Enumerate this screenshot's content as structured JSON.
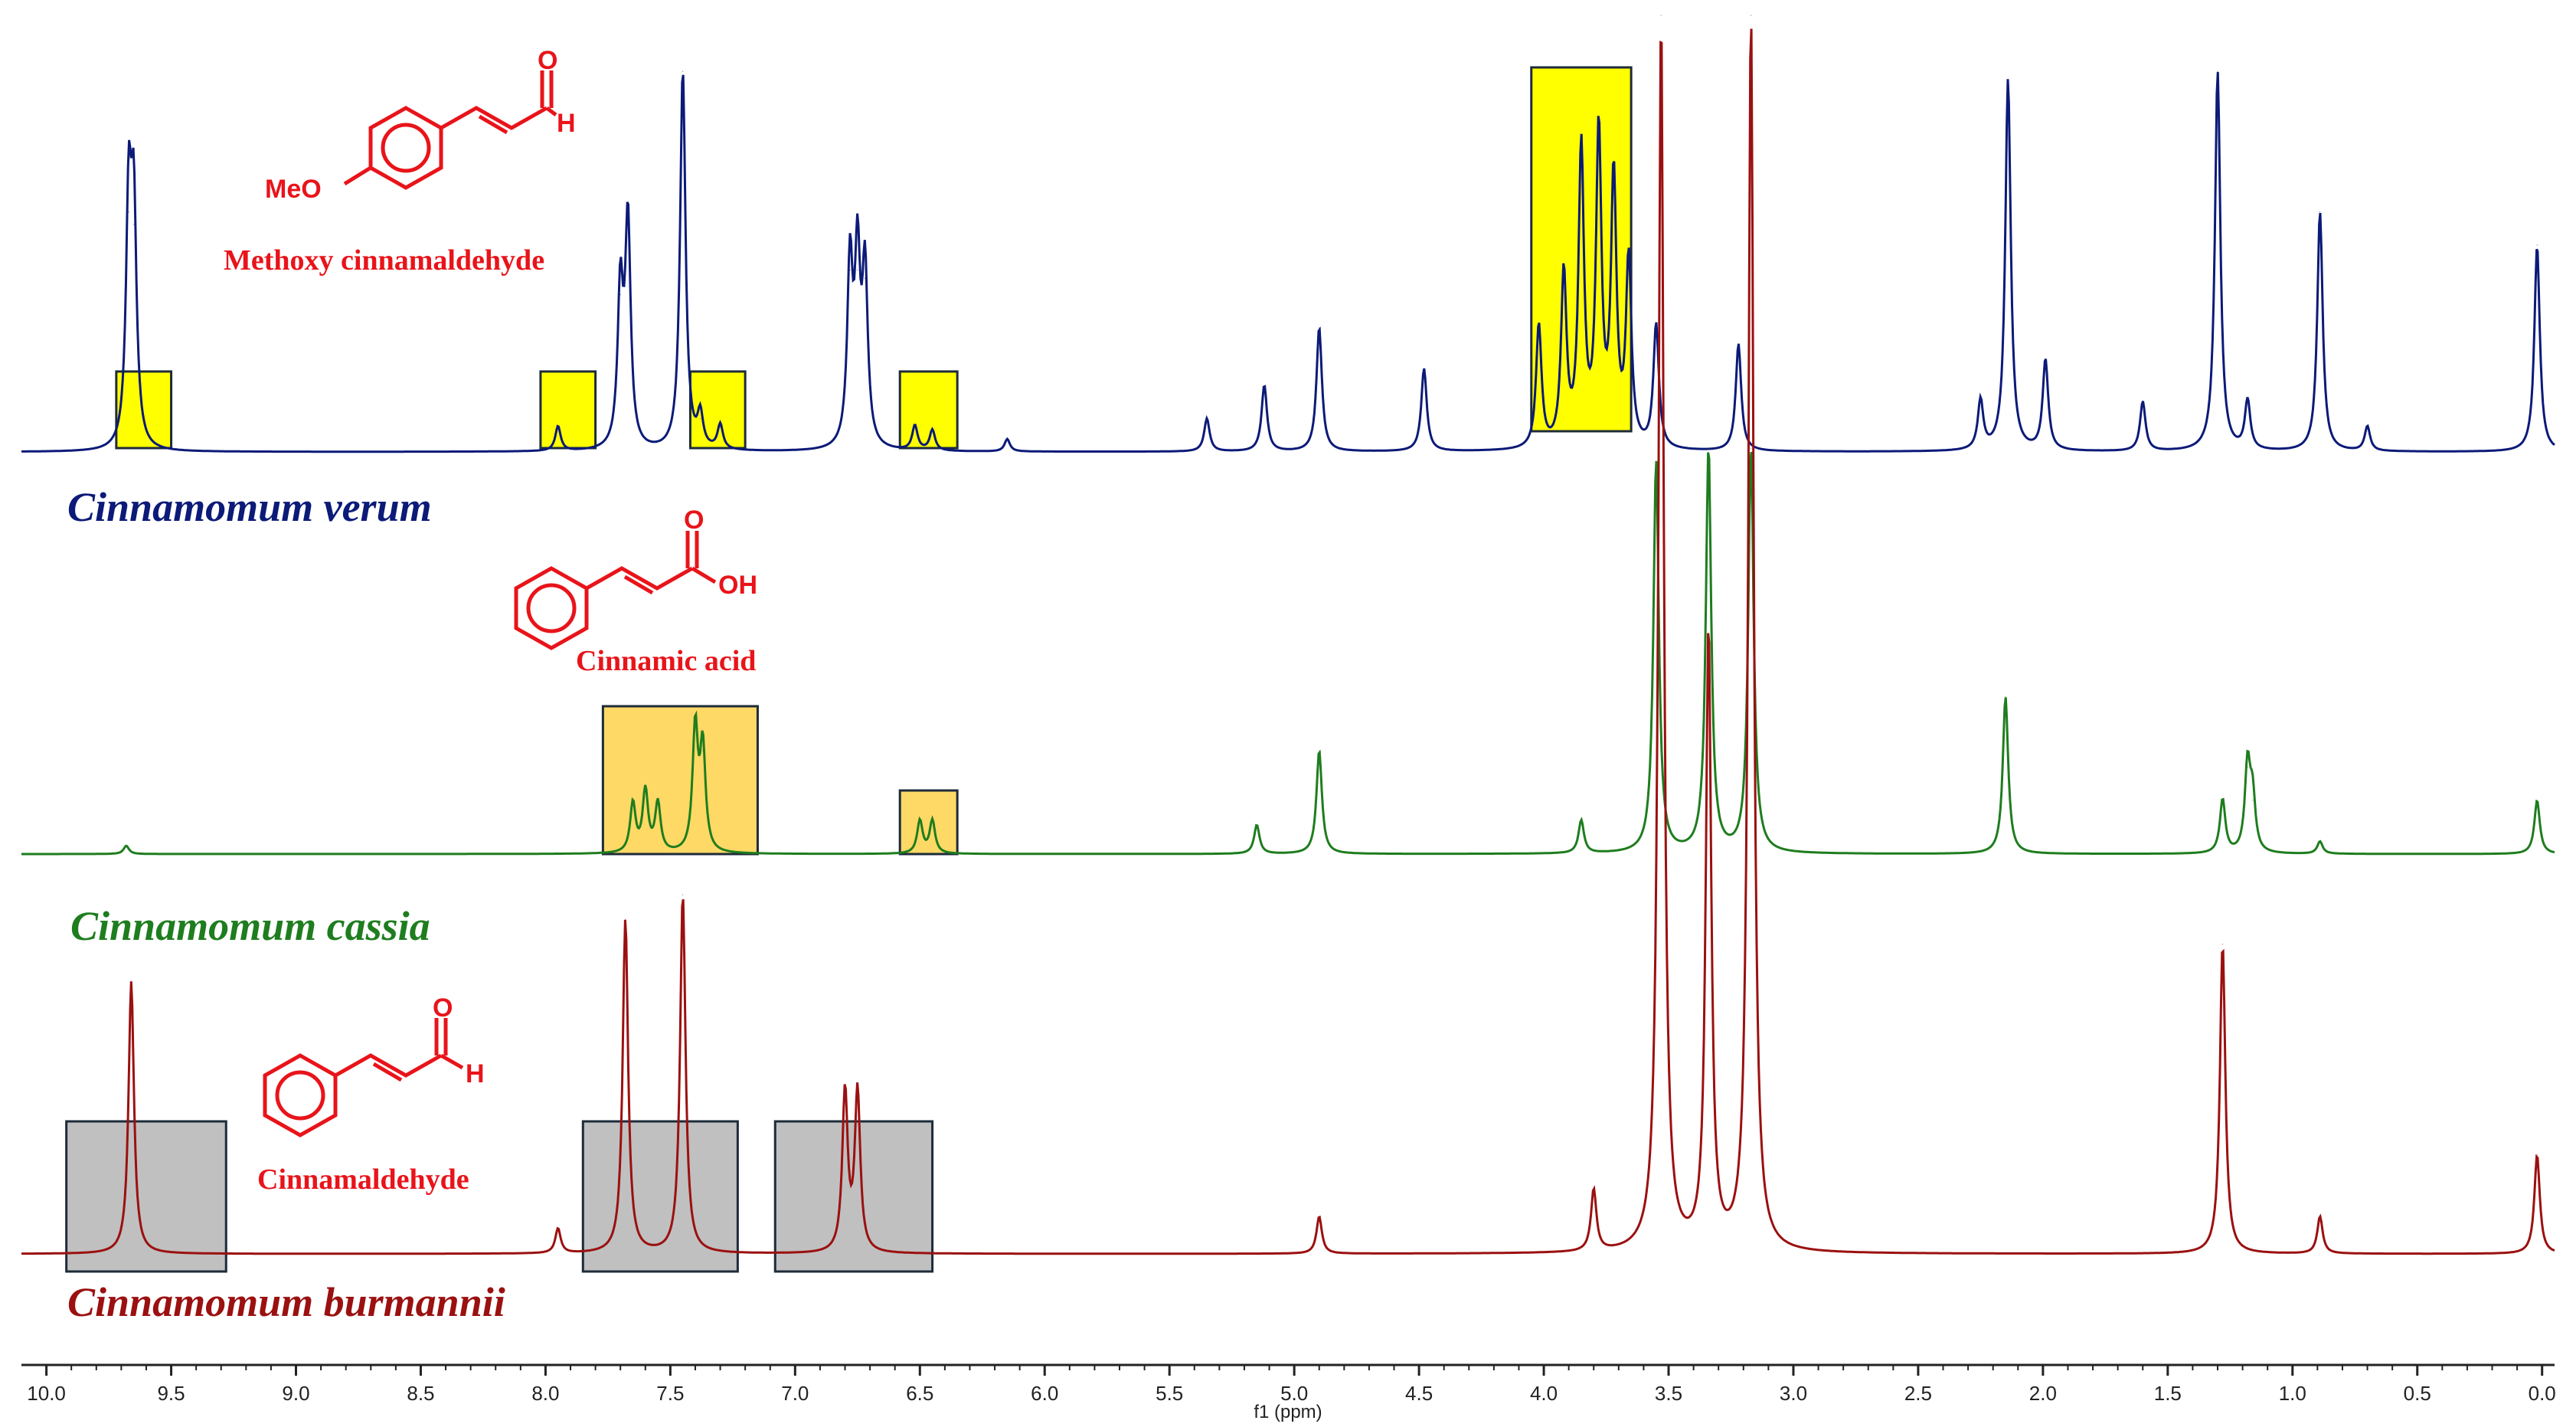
{
  "chart_data": {
    "type": "line",
    "subtype": "stacked 1H NMR spectra",
    "xlabel": "f1 (ppm)",
    "xlim": [
      10.1,
      -0.05
    ],
    "x_reversed": true,
    "x_ticks": [
      10.0,
      9.5,
      9.0,
      8.5,
      8.0,
      7.5,
      7.0,
      6.5,
      6.0,
      5.5,
      5.0,
      4.5,
      4.0,
      3.5,
      3.0,
      2.5,
      2.0,
      1.5,
      1.0,
      0.5,
      0.0
    ],
    "x_tick_labels": [
      "10.0",
      "9.5",
      "9.0",
      "8.5",
      "8.0",
      "7.5",
      "7.0",
      "6.5",
      "6.0",
      "5.5",
      "5.0",
      "4.5",
      "4.0",
      "3.5",
      "3.0",
      "2.5",
      "2.0",
      "1.5",
      "1.0",
      "0.5",
      "0.0"
    ],
    "grid": false,
    "series": [
      {
        "name": "Cinnamomum verum",
        "color": "#0c1a78",
        "peaks": [
          {
            "ppm": 9.67,
            "height": 0.58
          },
          {
            "ppm": 9.65,
            "height": 0.55
          },
          {
            "ppm": 7.95,
            "height": 0.06
          },
          {
            "ppm": 7.7,
            "height": 0.38
          },
          {
            "ppm": 7.67,
            "height": 0.55
          },
          {
            "ppm": 7.45,
            "height": 0.92
          },
          {
            "ppm": 7.38,
            "height": 0.08
          },
          {
            "ppm": 7.3,
            "height": 0.06
          },
          {
            "ppm": 6.78,
            "height": 0.44
          },
          {
            "ppm": 6.75,
            "height": 0.44
          },
          {
            "ppm": 6.72,
            "height": 0.42
          },
          {
            "ppm": 6.52,
            "height": 0.06
          },
          {
            "ppm": 6.45,
            "height": 0.05
          },
          {
            "ppm": 6.15,
            "height": 0.03
          },
          {
            "ppm": 5.35,
            "height": 0.08
          },
          {
            "ppm": 5.12,
            "height": 0.16
          },
          {
            "ppm": 4.9,
            "height": 0.3
          },
          {
            "ppm": 4.48,
            "height": 0.2
          },
          {
            "ppm": 4.02,
            "height": 0.3
          },
          {
            "ppm": 3.92,
            "height": 0.42
          },
          {
            "ppm": 3.85,
            "height": 0.72
          },
          {
            "ppm": 3.78,
            "height": 0.76
          },
          {
            "ppm": 3.72,
            "height": 0.65
          },
          {
            "ppm": 3.66,
            "height": 0.45
          },
          {
            "ppm": 3.55,
            "height": 0.3
          },
          {
            "ppm": 3.22,
            "height": 0.26
          },
          {
            "ppm": 2.25,
            "height": 0.12
          },
          {
            "ppm": 2.14,
            "height": 0.9
          },
          {
            "ppm": 1.99,
            "height": 0.22
          },
          {
            "ppm": 1.6,
            "height": 0.12
          },
          {
            "ppm": 1.3,
            "height": 0.92
          },
          {
            "ppm": 1.18,
            "height": 0.12
          },
          {
            "ppm": 0.89,
            "height": 0.58
          },
          {
            "ppm": 0.7,
            "height": 0.06
          },
          {
            "ppm": 0.02,
            "height": 0.5
          }
        ]
      },
      {
        "name": "Cinnamomum cassia",
        "color": "#1e7d1e",
        "peaks": [
          {
            "ppm": 9.68,
            "height": 0.02
          },
          {
            "ppm": 7.65,
            "height": 0.12
          },
          {
            "ppm": 7.6,
            "height": 0.15
          },
          {
            "ppm": 7.55,
            "height": 0.12
          },
          {
            "ppm": 7.4,
            "height": 0.3
          },
          {
            "ppm": 7.37,
            "height": 0.25
          },
          {
            "ppm": 6.5,
            "height": 0.08
          },
          {
            "ppm": 6.45,
            "height": 0.08
          },
          {
            "ppm": 5.15,
            "height": 0.07
          },
          {
            "ppm": 4.9,
            "height": 0.25
          },
          {
            "ppm": 3.85,
            "height": 0.08
          },
          {
            "ppm": 3.55,
            "height": 0.95
          },
          {
            "ppm": 3.34,
            "height": 0.98
          },
          {
            "ppm": 3.17,
            "height": 0.98
          },
          {
            "ppm": 2.15,
            "height": 0.38
          },
          {
            "ppm": 1.28,
            "height": 0.13
          },
          {
            "ppm": 1.18,
            "height": 0.21
          },
          {
            "ppm": 1.16,
            "height": 0.13
          },
          {
            "ppm": 0.89,
            "height": 0.03
          },
          {
            "ppm": 0.02,
            "height": 0.13
          }
        ]
      },
      {
        "name": "Cinnamomum burmannii",
        "color": "#9b1010",
        "peaks": [
          {
            "ppm": 9.66,
            "height": 0.22
          },
          {
            "ppm": 7.95,
            "height": 0.02
          },
          {
            "ppm": 7.68,
            "height": 0.27
          },
          {
            "ppm": 7.45,
            "height": 0.29
          },
          {
            "ppm": 6.8,
            "height": 0.13
          },
          {
            "ppm": 6.75,
            "height": 0.13
          },
          {
            "ppm": 4.9,
            "height": 0.03
          },
          {
            "ppm": 3.8,
            "height": 0.05
          },
          {
            "ppm": 3.53,
            "height": 1.0
          },
          {
            "ppm": 3.34,
            "height": 0.5
          },
          {
            "ppm": 3.17,
            "height": 1.0
          },
          {
            "ppm": 1.28,
            "height": 0.25
          },
          {
            "ppm": 0.89,
            "height": 0.03
          },
          {
            "ppm": 0.02,
            "height": 0.08
          }
        ]
      }
    ],
    "highlight_regions": [
      {
        "series": "Cinnamomum verum",
        "ppm": [
          9.72,
          9.5
        ],
        "fill": "#ffff00"
      },
      {
        "series": "Cinnamomum verum",
        "ppm": [
          8.02,
          7.8
        ],
        "fill": "#ffff00"
      },
      {
        "series": "Cinnamomum verum",
        "ppm": [
          7.42,
          7.2
        ],
        "fill": "#ffff00"
      },
      {
        "series": "Cinnamomum verum",
        "ppm": [
          6.58,
          6.35
        ],
        "fill": "#ffff00"
      },
      {
        "series": "Cinnamomum verum",
        "ppm": [
          4.05,
          3.65
        ],
        "fill": "#ffff00"
      },
      {
        "series": "Cinnamomum cassia",
        "ppm": [
          7.77,
          7.15
        ],
        "fill": "#ffd966"
      },
      {
        "series": "Cinnamomum cassia",
        "ppm": [
          6.58,
          6.35
        ],
        "fill": "#ffd966"
      },
      {
        "series": "Cinnamomum burmannii",
        "ppm": [
          9.92,
          9.28
        ],
        "fill": "#c0c0c0"
      },
      {
        "series": "Cinnamomum burmannii",
        "ppm": [
          7.85,
          7.23
        ],
        "fill": "#c0c0c0"
      },
      {
        "series": "Cinnamomum burmannii",
        "ppm": [
          7.08,
          6.45
        ],
        "fill": "#c0c0c0"
      }
    ],
    "annotations": [
      {
        "text": "Methoxy cinnamaldehyde",
        "series": "Cinnamomum verum",
        "atoms": [
          "O",
          "H",
          "MeO"
        ]
      },
      {
        "text": "Cinnamic acid",
        "series": "Cinnamomum cassia",
        "atoms": [
          "O",
          "OH"
        ]
      },
      {
        "text": "Cinnamaldehyde",
        "series": "Cinnamomum burmannii",
        "atoms": [
          "O",
          "H"
        ]
      }
    ]
  }
}
